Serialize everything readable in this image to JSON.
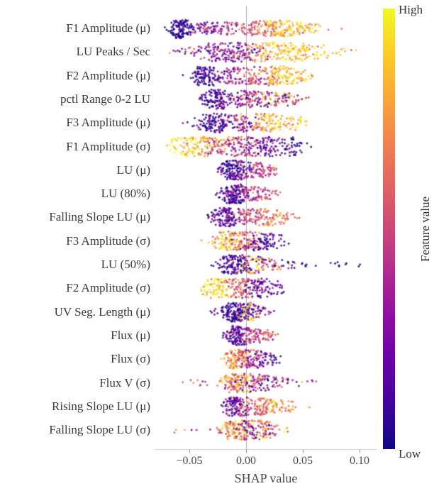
{
  "chart_data": {
    "type": "scatter",
    "subtype": "shap-beeswarm-summary",
    "title": "",
    "xlabel": "SHAP value",
    "ylabel": "",
    "xlim": [
      -0.081,
      0.116
    ],
    "x_ticks": [
      -0.05,
      0.0,
      0.05,
      0.1
    ],
    "x_tick_labels": [
      "−0.05",
      "0.00",
      "0.05",
      "0.10"
    ],
    "zero_line": true,
    "colorbar": {
      "label": "Feature value",
      "high": "High",
      "low": "Low",
      "colormap": "plasma"
    },
    "features": [
      {
        "label": "F1 Amplitude (μ)",
        "x_min": -0.072,
        "x_max": 0.073,
        "blobs": [
          {
            "c": -0.057,
            "s": 0.005,
            "n": 120,
            "t": 0.05
          },
          {
            "c": -0.038,
            "s": 0.006,
            "n": 25,
            "t": 0.2
          },
          {
            "c": -0.02,
            "s": 0.014,
            "n": 80,
            "t": 0.35
          },
          {
            "c": 0.012,
            "s": 0.012,
            "n": 90,
            "t": 0.6
          },
          {
            "c": 0.035,
            "s": 0.011,
            "n": 110,
            "t": 0.85
          },
          {
            "c": 0.06,
            "s": 0.007,
            "n": 18,
            "t": 0.78
          }
        ]
      },
      {
        "label": "LU Peaks / Sec",
        "x_min": -0.075,
        "x_max": 0.095,
        "blobs": [
          {
            "c": -0.06,
            "s": 0.012,
            "n": 10,
            "t": 0.5,
            "ts": 0.3
          },
          {
            "c": -0.025,
            "s": 0.012,
            "n": 100,
            "t": 0.25
          },
          {
            "c": 0.0,
            "s": 0.01,
            "n": 80,
            "t": 0.32,
            "ts": 0.2
          },
          {
            "c": 0.03,
            "s": 0.014,
            "n": 120,
            "t": 0.85
          },
          {
            "c": 0.06,
            "s": 0.012,
            "n": 40,
            "t": 0.9
          },
          {
            "c": 0.085,
            "s": 0.008,
            "n": 8,
            "t": 0.8
          }
        ]
      },
      {
        "label": "F2 Amplitude (μ)",
        "x_min": -0.05,
        "x_max": 0.056,
        "blobs": [
          {
            "c": -0.035,
            "s": 0.007,
            "n": 110,
            "t": 0.08
          },
          {
            "c": -0.01,
            "s": 0.01,
            "n": 70,
            "t": 0.3
          },
          {
            "c": 0.01,
            "s": 0.01,
            "n": 60,
            "t": 0.55
          },
          {
            "c": 0.03,
            "s": 0.011,
            "n": 110,
            "t": 0.85
          },
          {
            "c": 0.05,
            "s": 0.004,
            "n": 15,
            "t": 0.9
          }
        ]
      },
      {
        "label": "pctl Range 0-2 LU",
        "x_min": -0.04,
        "x_max": 0.05,
        "blobs": [
          {
            "c": -0.027,
            "s": 0.006,
            "n": 110,
            "t": 0.1
          },
          {
            "c": -0.005,
            "s": 0.01,
            "n": 80,
            "t": 0.3,
            "ts": 0.2
          },
          {
            "c": 0.02,
            "s": 0.013,
            "n": 90,
            "t": 0.5,
            "ts": 0.28
          },
          {
            "c": 0.04,
            "s": 0.006,
            "n": 20,
            "t": 0.45,
            "ts": 0.25
          }
        ]
      },
      {
        "label": "F3 Amplitude (μ)",
        "x_min": -0.05,
        "x_max": 0.055,
        "blobs": [
          {
            "c": -0.03,
            "s": 0.008,
            "n": 120,
            "t": 0.1
          },
          {
            "c": -0.005,
            "s": 0.01,
            "n": 70,
            "t": 0.35
          },
          {
            "c": 0.02,
            "s": 0.012,
            "n": 100,
            "t": 0.8
          },
          {
            "c": 0.045,
            "s": 0.005,
            "n": 20,
            "t": 0.88
          }
        ]
      },
      {
        "label": "F1 Amplitude (σ)",
        "x_min": -0.07,
        "x_max": 0.05,
        "blobs": [
          {
            "c": -0.063,
            "s": 0.004,
            "n": 12,
            "t": 0.95
          },
          {
            "c": -0.05,
            "s": 0.007,
            "n": 60,
            "t": 0.92
          },
          {
            "c": -0.03,
            "s": 0.01,
            "n": 80,
            "t": 0.75
          },
          {
            "c": -0.005,
            "s": 0.012,
            "n": 110,
            "t": 0.45,
            "ts": 0.22
          },
          {
            "c": 0.02,
            "s": 0.012,
            "n": 90,
            "t": 0.2
          },
          {
            "c": 0.04,
            "s": 0.007,
            "n": 30,
            "t": 0.08
          }
        ]
      },
      {
        "label": "LU (μ)",
        "x_min": -0.025,
        "x_max": 0.03,
        "blobs": [
          {
            "c": -0.012,
            "s": 0.006,
            "n": 130,
            "t": 0.1
          },
          {
            "c": 0.005,
            "s": 0.008,
            "n": 70,
            "t": 0.4
          },
          {
            "c": 0.02,
            "s": 0.007,
            "n": 30,
            "t": 0.55
          }
        ]
      },
      {
        "label": "LU (80%)",
        "x_min": -0.03,
        "x_max": 0.03,
        "blobs": [
          {
            "c": -0.012,
            "s": 0.006,
            "n": 140,
            "t": 0.12
          },
          {
            "c": 0.005,
            "s": 0.008,
            "n": 60,
            "t": 0.45
          },
          {
            "c": 0.02,
            "s": 0.006,
            "n": 25,
            "t": 0.5
          }
        ]
      },
      {
        "label": "Falling Slope LU (μ)",
        "x_min": -0.035,
        "x_max": 0.045,
        "blobs": [
          {
            "c": -0.018,
            "s": 0.007,
            "n": 120,
            "t": 0.15
          },
          {
            "c": 0.005,
            "s": 0.01,
            "n": 80,
            "t": 0.5
          },
          {
            "c": 0.025,
            "s": 0.01,
            "n": 60,
            "t": 0.7
          }
        ]
      },
      {
        "label": "F3 Amplitude (σ)",
        "x_min": -0.03,
        "x_max": 0.035,
        "blobs": [
          {
            "c": -0.018,
            "s": 0.007,
            "n": 90,
            "t": 0.85
          },
          {
            "c": 0.0,
            "s": 0.008,
            "n": 90,
            "t": 0.55
          },
          {
            "c": 0.015,
            "s": 0.008,
            "n": 70,
            "t": 0.15
          },
          {
            "c": 0.03,
            "s": 0.004,
            "n": 10,
            "t": 0.1
          }
        ]
      },
      {
        "label": "LU (50%)",
        "x_min": -0.03,
        "x_max": 0.105,
        "blobs": [
          {
            "c": -0.012,
            "s": 0.007,
            "n": 130,
            "t": 0.1
          },
          {
            "c": 0.005,
            "s": 0.008,
            "n": 60,
            "t": 0.5,
            "ts": 0.3
          },
          {
            "c": 0.02,
            "s": 0.01,
            "n": 40,
            "t": 0.6,
            "ts": 0.3
          },
          {
            "c": 0.06,
            "s": 0.022,
            "n": 25,
            "t": 0.05,
            "ts": 0.05
          }
        ]
      },
      {
        "label": "F2 Amplitude (σ)",
        "x_min": -0.04,
        "x_max": 0.03,
        "blobs": [
          {
            "c": -0.025,
            "s": 0.008,
            "n": 90,
            "t": 0.9
          },
          {
            "c": -0.005,
            "s": 0.008,
            "n": 80,
            "t": 0.6
          },
          {
            "c": 0.012,
            "s": 0.008,
            "n": 80,
            "t": 0.2
          },
          {
            "c": 0.028,
            "s": 0.004,
            "n": 10,
            "t": 0.1
          }
        ]
      },
      {
        "label": "UV Seg. Length (μ)",
        "x_min": -0.03,
        "x_max": 0.02,
        "blobs": [
          {
            "c": -0.022,
            "s": 0.005,
            "n": 15,
            "t": 0.15
          },
          {
            "c": -0.008,
            "s": 0.006,
            "n": 150,
            "t": 0.08
          },
          {
            "c": 0.002,
            "s": 0.004,
            "n": 30,
            "t": 0.95,
            "ts": 0.05
          },
          {
            "c": 0.008,
            "s": 0.006,
            "n": 40,
            "t": 0.2
          }
        ]
      },
      {
        "label": "Flux (μ)",
        "x_min": -0.02,
        "x_max": 0.025,
        "blobs": [
          {
            "c": -0.008,
            "s": 0.005,
            "n": 120,
            "t": 0.15
          },
          {
            "c": 0.005,
            "s": 0.007,
            "n": 70,
            "t": 0.45
          },
          {
            "c": 0.018,
            "s": 0.006,
            "n": 25,
            "t": 0.6
          }
        ]
      },
      {
        "label": "Flux (σ)",
        "x_min": -0.02,
        "x_max": 0.035,
        "blobs": [
          {
            "c": -0.008,
            "s": 0.006,
            "n": 110,
            "t": 0.75
          },
          {
            "c": 0.005,
            "s": 0.007,
            "n": 70,
            "t": 0.4
          },
          {
            "c": 0.018,
            "s": 0.008,
            "n": 40,
            "t": 0.15
          }
        ]
      },
      {
        "label": "Flux V (σ)",
        "x_min": -0.055,
        "x_max": 0.065,
        "blobs": [
          {
            "c": -0.045,
            "s": 0.01,
            "n": 10,
            "t": 0.6,
            "ts": 0.25
          },
          {
            "c": -0.008,
            "s": 0.007,
            "n": 110,
            "t": 0.7,
            "ts": 0.2
          },
          {
            "c": 0.008,
            "s": 0.008,
            "n": 70,
            "t": 0.35,
            "ts": 0.25
          },
          {
            "c": 0.025,
            "s": 0.01,
            "n": 30,
            "t": 0.3,
            "ts": 0.25
          },
          {
            "c": 0.05,
            "s": 0.008,
            "n": 8,
            "t": 0.4,
            "ts": 0.3
          }
        ]
      },
      {
        "label": "Rising Slope LU (μ)",
        "x_min": -0.02,
        "x_max": 0.05,
        "blobs": [
          {
            "c": -0.01,
            "s": 0.006,
            "n": 110,
            "t": 0.2
          },
          {
            "c": 0.008,
            "s": 0.009,
            "n": 80,
            "t": 0.55
          },
          {
            "c": 0.025,
            "s": 0.009,
            "n": 50,
            "t": 0.75
          },
          {
            "c": 0.04,
            "s": 0.005,
            "n": 10,
            "t": 0.8
          }
        ]
      },
      {
        "label": "Falling Slope LU (σ)",
        "x_min": -0.065,
        "x_max": 0.035,
        "blobs": [
          {
            "c": -0.062,
            "s": 0.003,
            "n": 3,
            "t": 0.75
          },
          {
            "c": -0.04,
            "s": 0.004,
            "n": 4,
            "t": 0.3
          },
          {
            "c": -0.01,
            "s": 0.007,
            "n": 100,
            "t": 0.75,
            "ts": 0.2
          },
          {
            "c": 0.005,
            "s": 0.008,
            "n": 80,
            "t": 0.45,
            "ts": 0.25
          },
          {
            "c": 0.02,
            "s": 0.008,
            "n": 50,
            "t": 0.6,
            "ts": 0.3
          }
        ]
      }
    ]
  },
  "colors": {
    "plasma": [
      "#0d0887",
      "#41049d",
      "#6a00a8",
      "#8f0da4",
      "#b12a90",
      "#cc4778",
      "#e16462",
      "#f2844b",
      "#fca636",
      "#fcce25",
      "#f0f921"
    ],
    "zero_line": "#b3b3b3",
    "axis_line": "#cfcfcf",
    "tick_mark": "#8a8a8a",
    "label_text": "#3a3a3a",
    "tick_text": "#4a4a4a"
  }
}
